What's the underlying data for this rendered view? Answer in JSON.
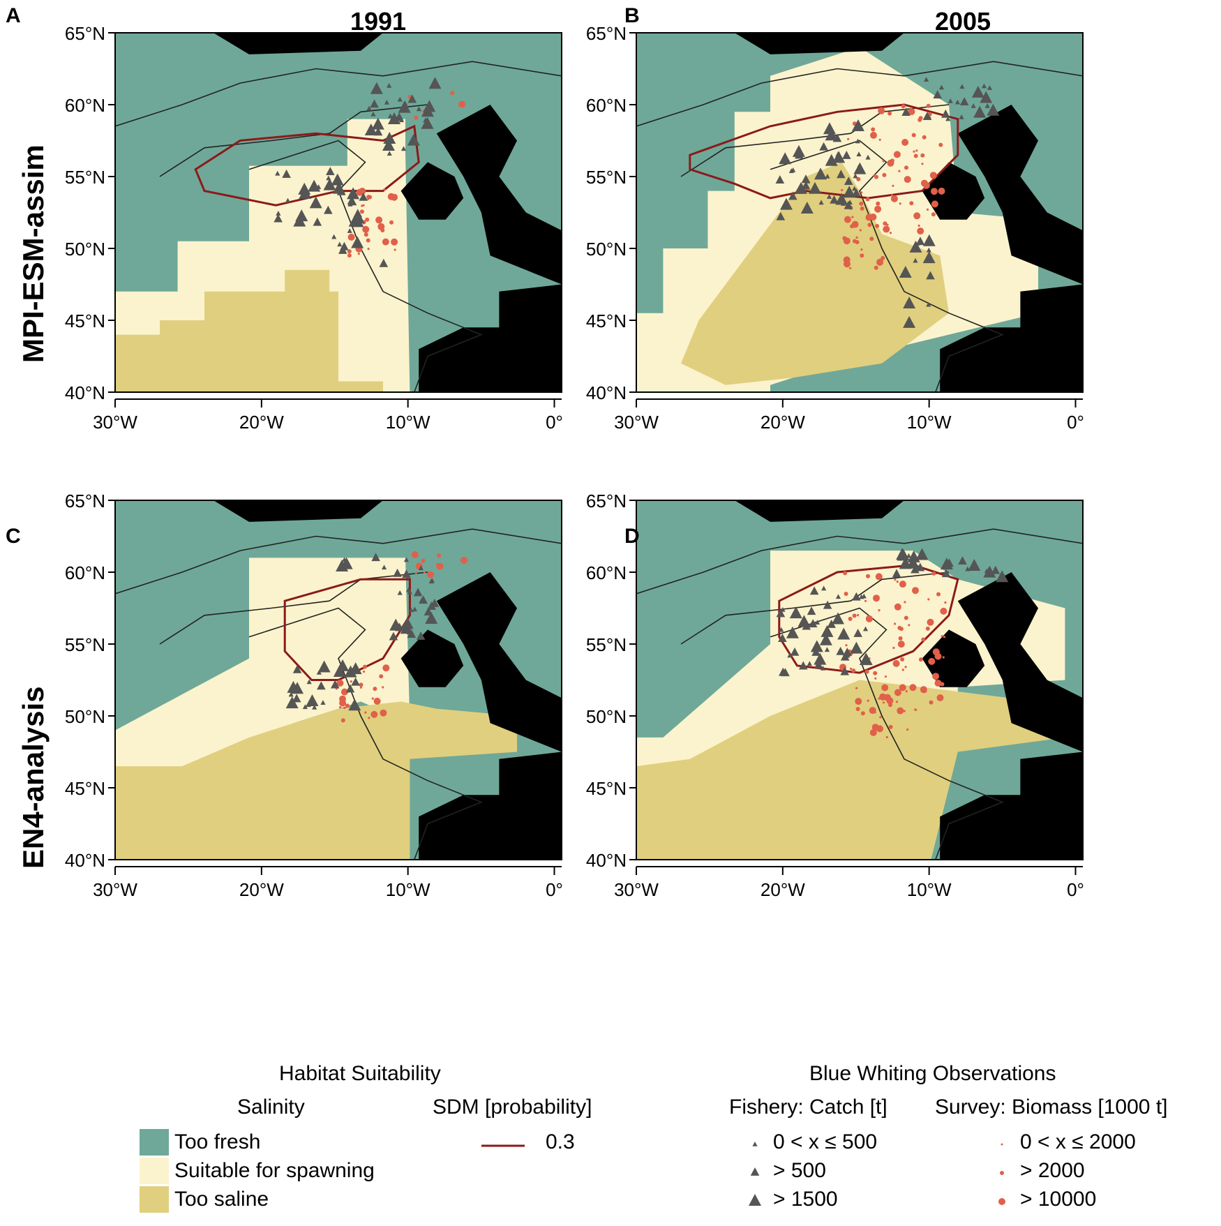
{
  "panels": [
    {
      "letter": "A",
      "year": "1991",
      "model": "MPI-ESM-assim"
    },
    {
      "letter": "B",
      "year": "2005",
      "model": "MPI-ESM-assim"
    },
    {
      "letter": "C",
      "year": "1991",
      "model": "EN4-analysis"
    },
    {
      "letter": "D",
      "year": "2005",
      "model": "EN4-analysis"
    }
  ],
  "row_titles": [
    "MPI-ESM-assim",
    "EN4-analysis"
  ],
  "col_titles": [
    "1991",
    "2005"
  ],
  "lat_ticks": [
    "65°N",
    "60°N",
    "55°N",
    "50°N",
    "45°N",
    "40°N"
  ],
  "lon_ticks": [
    "30°W",
    "20°W",
    "10°W",
    "0°"
  ],
  "map_extent": {
    "lon": [
      -30,
      0.5
    ],
    "lat": [
      40,
      65
    ]
  },
  "colors": {
    "too_fresh": "#6fa898",
    "suitable": "#fbf3cd",
    "too_saline": "#e0cf7e",
    "land": "#000000",
    "sdm_contour": "#8b1a1a",
    "fishery": "#555555",
    "survey": "#e0604a"
  },
  "legend": {
    "habitat": {
      "title": "Habitat Suitability",
      "salinity_title": "Salinity",
      "sdm_title": "SDM [probability]",
      "items": [
        "Too fresh",
        "Suitable for spawning",
        "Too saline"
      ],
      "sdm_value": "0.3"
    },
    "obs": {
      "title": "Blue Whiting Observations",
      "fishery_title": "Fishery: Catch [t]",
      "survey_title": "Survey: Biomass [1000 t]",
      "fishery_items": [
        "0 < x ≤ 500",
        "> 500",
        "> 1500"
      ],
      "survey_items": [
        "0 < x ≤ 2000",
        "> 2000",
        "> 10000"
      ]
    }
  }
}
